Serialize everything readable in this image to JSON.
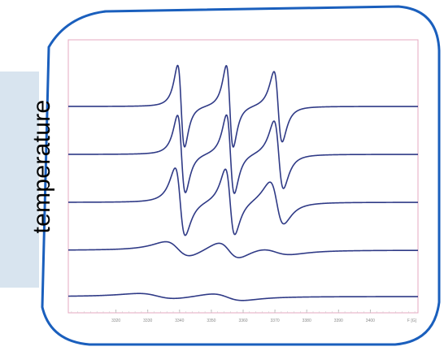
{
  "side_label": "temperature",
  "colors": {
    "frame": "#1a5fbd",
    "band": "#d8e4ef",
    "plot_border": "#e6a8c0",
    "trace": "#2f3a86",
    "tick_text": "#8a8a8a"
  },
  "chart_data": {
    "type": "line",
    "title": "",
    "xlabel": "",
    "ylabel": "",
    "xlim": [
      3305,
      3415
    ],
    "x_unit_label": "F [G]",
    "x_ticks": [
      {
        "value": 3320,
        "label": "3320"
      },
      {
        "value": 3330,
        "label": "3330"
      },
      {
        "value": 3340,
        "label": "3340"
      },
      {
        "value": 3350,
        "label": "3350"
      },
      {
        "value": 3360,
        "label": "3360"
      },
      {
        "value": 3370,
        "label": "3370"
      },
      {
        "value": 3380,
        "label": "3380"
      },
      {
        "value": 3390,
        "label": "3390"
      },
      {
        "value": 3400,
        "label": "3400"
      }
    ],
    "grid": false,
    "legend": "none",
    "series": [
      {
        "values_type": "derivative-lorentzian",
        "lines": [
          3340.5,
          3355.8,
          3371.0
        ],
        "widths": [
          1.1,
          1.1,
          1.3
        ],
        "amps": [
          58,
          58,
          50
        ]
      },
      {
        "values_type": "derivative-lorentzian",
        "lines": [
          3340.6,
          3356.0,
          3371.2
        ],
        "widths": [
          1.25,
          1.25,
          1.5
        ],
        "amps": [
          55,
          56,
          48
        ]
      },
      {
        "values_type": "derivative-lorentzian",
        "lines": [
          3340.2,
          3355.9,
          3370.6
        ],
        "widths": [
          1.6,
          1.5,
          2.2
        ],
        "amps": [
          48,
          47,
          30
        ]
      },
      {
        "values_type": "derivative-lorentzian",
        "lines": [
          3339.5,
          3355.5,
          3370.0
        ],
        "widths": [
          4.0,
          3.5,
          5.0
        ],
        "amps": [
          11,
          12,
          5
        ]
      },
      {
        "values_type": "derivative-lorentzian",
        "lines": [
          3333.0,
          3355.0
        ],
        "widths": [
          6.0,
          5.0
        ],
        "amps": [
          4,
          5
        ]
      }
    ]
  }
}
